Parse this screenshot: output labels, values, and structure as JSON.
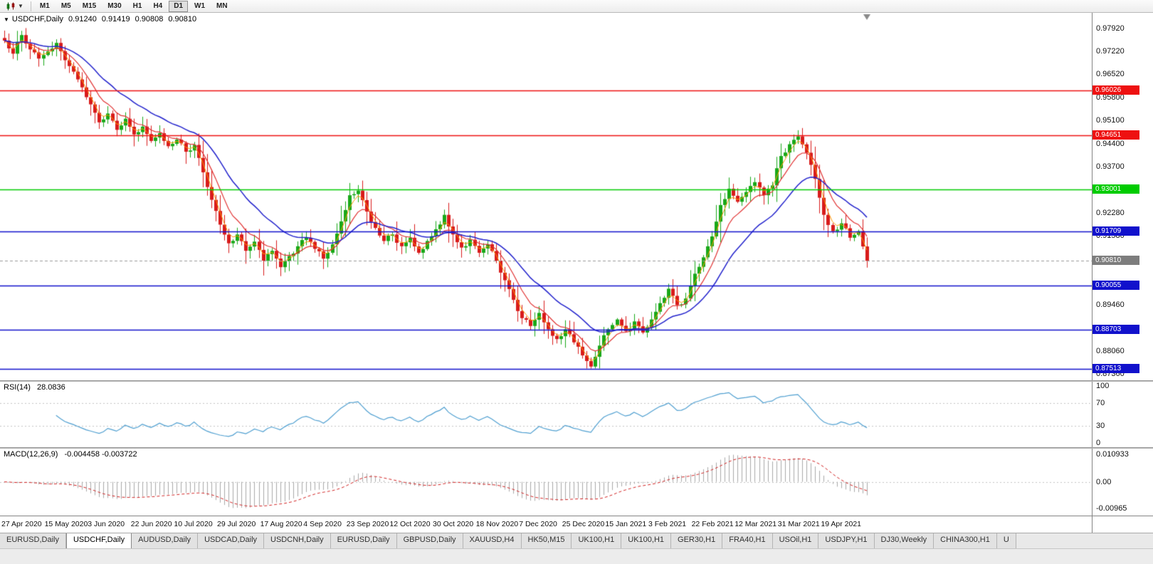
{
  "toolbar": {
    "timeframes": [
      "M1",
      "M5",
      "M15",
      "M30",
      "H1",
      "H4",
      "D1",
      "W1",
      "MN"
    ],
    "active_timeframe": "D1"
  },
  "chart": {
    "title": "USDCHF,Daily",
    "ohlc": {
      "open": "0.91240",
      "high": "0.91419",
      "low": "0.90808",
      "close": "0.90810"
    },
    "axis_ticks": [
      "0.97920",
      "0.97220",
      "0.96520",
      "0.95800",
      "0.95100",
      "0.94400",
      "0.93700",
      "0.92280",
      "0.91580",
      "0.89460",
      "0.88060",
      "0.87360"
    ],
    "levels": [
      {
        "value": 0.96026,
        "label": "0.96026",
        "color": "#ee1111"
      },
      {
        "value": 0.94651,
        "label": "0.94651",
        "color": "#ee1111"
      },
      {
        "value": 0.93001,
        "label": "0.93001",
        "color": "#00cc00"
      },
      {
        "value": 0.91709,
        "label": "0.91709",
        "color": "#1111cc"
      },
      {
        "value": 0.90055,
        "label": "0.90055",
        "color": "#1111cc"
      },
      {
        "value": 0.88703,
        "label": "0.88703",
        "color": "#1111cc"
      },
      {
        "value": 0.87513,
        "label": "0.87513",
        "color": "#1111cc"
      }
    ],
    "current_price": {
      "value": 0.9081,
      "label": "0.90810",
      "color": "#7d7d7d"
    },
    "colors": {
      "up": "#18a818",
      "down": "#d81b1b",
      "ma_fast": "#ff9900",
      "ma_mid": "#e03030",
      "ma_slow": "#2222cc"
    }
  },
  "indicators": {
    "rsi": {
      "name": "RSI(14)",
      "value": "28.0836",
      "current": 28.0836,
      "axis": [
        "100",
        "70",
        "30",
        "0"
      ],
      "levels": [
        70,
        30
      ],
      "line_color": "#4f9fd0"
    },
    "macd": {
      "name": "MACD(12,26,9)",
      "values": "-0.004458 -0.003722",
      "macd_current": -0.004458,
      "signal_current": -0.003722,
      "axis_top": "0.010933",
      "axis_zero": "0.00",
      "axis_bottom": "-0.00965",
      "hist_color": "#a9a9a9",
      "signal_color": "#d02020"
    }
  },
  "chart_data": {
    "type": "candlestick",
    "title": "USDCHF,Daily",
    "y_range": [
      0.8716,
      0.984
    ],
    "x_labels": [
      "27 Apr 2020",
      "15 May 2020",
      "3 Jun 2020",
      "22 Jun 2020",
      "10 Jul 2020",
      "29 Jul 2020",
      "17 Aug 2020",
      "4 Sep 2020",
      "23 Sep 2020",
      "12 Oct 2020",
      "30 Oct 2020",
      "18 Nov 2020",
      "7 Dec 2020",
      "25 Dec 2020",
      "15 Jan 2021",
      "3 Feb 2021",
      "22 Feb 2021",
      "12 Mar 2021",
      "31 Mar 2021",
      "19 Apr 2021"
    ],
    "close_path": [
      0.9755,
      0.9715,
      0.9772,
      0.9728,
      0.97,
      0.9722,
      0.9748,
      0.9695,
      0.966,
      0.9612,
      0.956,
      0.9505,
      0.9532,
      0.9482,
      0.9516,
      0.9468,
      0.9492,
      0.9448,
      0.9472,
      0.9432,
      0.9452,
      0.9415,
      0.9436,
      0.9352,
      0.9268,
      0.9192,
      0.9135,
      0.9162,
      0.9112,
      0.914,
      0.9082,
      0.9112,
      0.9062,
      0.9096,
      0.9126,
      0.9152,
      0.9118,
      0.9088,
      0.9132,
      0.9202,
      0.9282,
      0.9296,
      0.9232,
      0.9182,
      0.9142,
      0.9162,
      0.9126,
      0.9152,
      0.9106,
      0.9142,
      0.9178,
      0.9222,
      0.9162,
      0.9122,
      0.9146,
      0.9106,
      0.9132,
      0.9082,
      0.9022,
      0.8962,
      0.8906,
      0.8882,
      0.8922,
      0.8872,
      0.8842,
      0.8872,
      0.8832,
      0.8792,
      0.8758,
      0.8822,
      0.8872,
      0.8902,
      0.8866,
      0.8896,
      0.8862,
      0.8902,
      0.8952,
      0.8996,
      0.8946,
      0.8966,
      0.9042,
      0.9092,
      0.9156,
      0.9252,
      0.9302,
      0.9262,
      0.9292,
      0.9322,
      0.9282,
      0.9312,
      0.9402,
      0.9438,
      0.9462,
      0.9412,
      0.9332,
      0.9222,
      0.9172,
      0.9196,
      0.9152,
      0.9172,
      0.9081
    ],
    "support_resistance": [
      0.96026,
      0.94651,
      0.93001,
      0.91709,
      0.90055,
      0.88703,
      0.87513
    ],
    "last_ohlc": [
      0.9124,
      0.91419,
      0.90808,
      0.9081
    ],
    "rsi_current": 28.0836,
    "macd_current": -0.004458,
    "macd_signal_current": -0.003722
  },
  "tabs": {
    "active_index": 1,
    "items": [
      "EURUSD,Daily",
      "USDCHF,Daily",
      "AUDUSD,Daily",
      "USDCAD,Daily",
      "USDCNH,Daily",
      "EURUSD,Daily",
      "GBPUSD,Daily",
      "XAUUSD,H4",
      "HK50,M15",
      "UK100,H1",
      "UK100,H1",
      "GER30,H1",
      "FRA40,H1",
      "USOil,H1",
      "USDJPY,H1",
      "DJ30,Weekly",
      "CHINA300,H1",
      "U"
    ]
  }
}
